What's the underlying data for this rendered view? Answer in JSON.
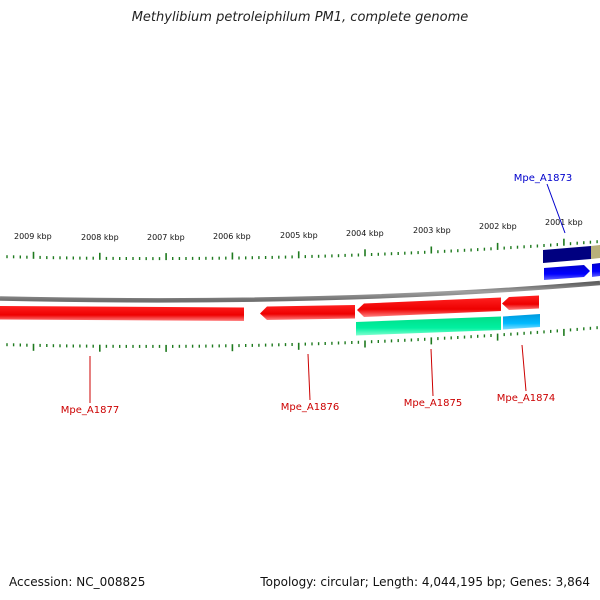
{
  "title": "Methylibium petroleiphilum PM1, complete genome",
  "footer": {
    "accession": "Accession: NC_008825",
    "summary": "Topology: circular; Length: 4,044,195 bp; Genes: 3,864"
  },
  "colors": {
    "backbone": "#808080",
    "tick": "#1e7a1e",
    "label_red": "#cc0000",
    "label_blue": "#0000cc"
  },
  "scale_labels": [
    "2009 kbp",
    "2008 kbp",
    "2007 kbp",
    "2006 kbp",
    "2005 kbp",
    "2004 kbp",
    "2003 kbp",
    "2002 kbp",
    "2001 kbp"
  ],
  "features": [
    {
      "name": "Mpe_A1877",
      "color": "#ee0000",
      "track": "reverse",
      "start_kbp": 2009.9,
      "end_kbp": 2006.2,
      "label_color": "#cc0000"
    },
    {
      "name": "Mpe_A1876",
      "color": "#ee0000",
      "track": "reverse",
      "start_kbp": 2005.8,
      "end_kbp": 2004.4,
      "label_color": "#cc0000"
    },
    {
      "name": "Mpe_A1875",
      "color": "#ee0000",
      "track": "reverse",
      "start_kbp": 2004.4,
      "end_kbp": 2002.3,
      "label_color": "#cc0000"
    },
    {
      "name": "Mpe_A1874",
      "color": "#ee0000",
      "track": "reverse",
      "start_kbp": 2002.2,
      "end_kbp": 2001.7,
      "label_color": "#cc0000"
    },
    {
      "name": "Mpe_A1873",
      "color": "#0000ee",
      "track": "forward",
      "start_kbp": 2001.6,
      "end_kbp": 2000.9,
      "label_color": "#0000cc"
    }
  ]
}
